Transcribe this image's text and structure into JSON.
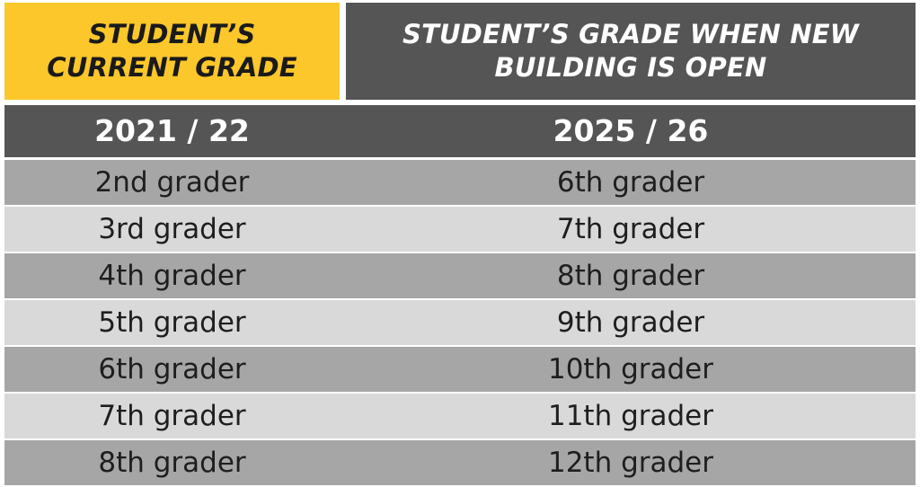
{
  "header": {
    "current_grade_label": "STUDENT’S CURRENT GRADE",
    "new_building_label": "STUDENT’S GRADE WHEN NEW BUILDING IS OPEN"
  },
  "years": {
    "current": "2021 / 22",
    "future": "2025 / 26"
  },
  "rows": [
    {
      "current": "2nd grader",
      "future": "6th grader"
    },
    {
      "current": "3rd grader",
      "future": "7th grader"
    },
    {
      "current": "4th grader",
      "future": "8th grader"
    },
    {
      "current": "5th grader",
      "future": "9th grader"
    },
    {
      "current": "6th grader",
      "future": "10th grader"
    },
    {
      "current": "7th grader",
      "future": "11th grader"
    },
    {
      "current": "8th grader",
      "future": "12th grader"
    }
  ],
  "colors": {
    "accent_yellow": "#fcc72a",
    "header_gray": "#555555",
    "row_dark": "#a6a6a6",
    "row_light": "#d9d9d9"
  }
}
